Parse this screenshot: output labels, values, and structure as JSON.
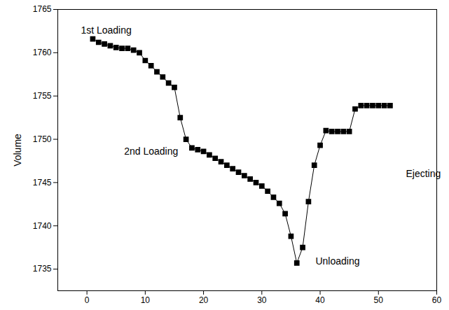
{
  "chart_data": {
    "type": "line",
    "y_label": "Volume",
    "marker": "square",
    "color": "#000000",
    "x": [
      1,
      2,
      3,
      4,
      5,
      6,
      7,
      8,
      9,
      10,
      11,
      12,
      13,
      14,
      15,
      16,
      17,
      18,
      19,
      20,
      21,
      22,
      23,
      24,
      25,
      26,
      27,
      28,
      29,
      30,
      31,
      32,
      33,
      34,
      35,
      36,
      37,
      38,
      39,
      40,
      41,
      42,
      43,
      44,
      45,
      46,
      47,
      48,
      49,
      50,
      51,
      52
    ],
    "values": [
      1761.6,
      1761.2,
      1761.0,
      1760.8,
      1760.6,
      1760.5,
      1760.5,
      1760.3,
      1760.0,
      1759.1,
      1758.5,
      1757.8,
      1757.2,
      1756.5,
      1756.0,
      1752.5,
      1750.0,
      1749.0,
      1748.8,
      1748.6,
      1748.2,
      1747.8,
      1747.4,
      1747.0,
      1746.6,
      1746.2,
      1745.8,
      1745.4,
      1745.0,
      1744.6,
      1744.0,
      1743.3,
      1742.6,
      1741.4,
      1738.8,
      1735.7,
      1737.5,
      1742.8,
      1747.0,
      1749.3,
      1751.0,
      1750.9,
      1750.9,
      1750.9,
      1750.9,
      1753.5,
      1753.9,
      1753.9,
      1753.9,
      1753.9,
      1753.9,
      1753.9
    ],
    "xlim": [
      -5,
      60
    ],
    "xticks": [
      0,
      10,
      20,
      30,
      40,
      50,
      60
    ],
    "ylim": [
      1732.5,
      1765
    ],
    "yticks": [
      1735,
      1740,
      1745,
      1750,
      1755,
      1760,
      1765
    ],
    "annotations": [
      {
        "text": "1st Loading",
        "x": 3.3,
        "y": 1762.6
      },
      {
        "text": "2nd Loading",
        "x": 11,
        "y": 1748.6
      },
      {
        "text": "Unloading",
        "x": 43,
        "y": 1735.9
      },
      {
        "text": "Ejecting",
        "x": 57.7,
        "y": 1746
      }
    ]
  }
}
